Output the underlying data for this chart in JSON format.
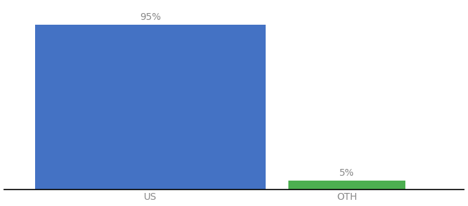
{
  "categories": [
    "US",
    "OTH"
  ],
  "values": [
    95,
    5
  ],
  "bar_colors": [
    "#4472c4",
    "#4caf50"
  ],
  "value_labels": [
    "95%",
    "5%"
  ],
  "background_color": "#ffffff",
  "bar_width": [
    0.55,
    0.28
  ],
  "x_positions": [
    0.35,
    0.82
  ],
  "xlim": [
    0.0,
    1.1
  ],
  "ylim": [
    0,
    107
  ],
  "label_fontsize": 10,
  "tick_fontsize": 10,
  "label_color": "#888888"
}
